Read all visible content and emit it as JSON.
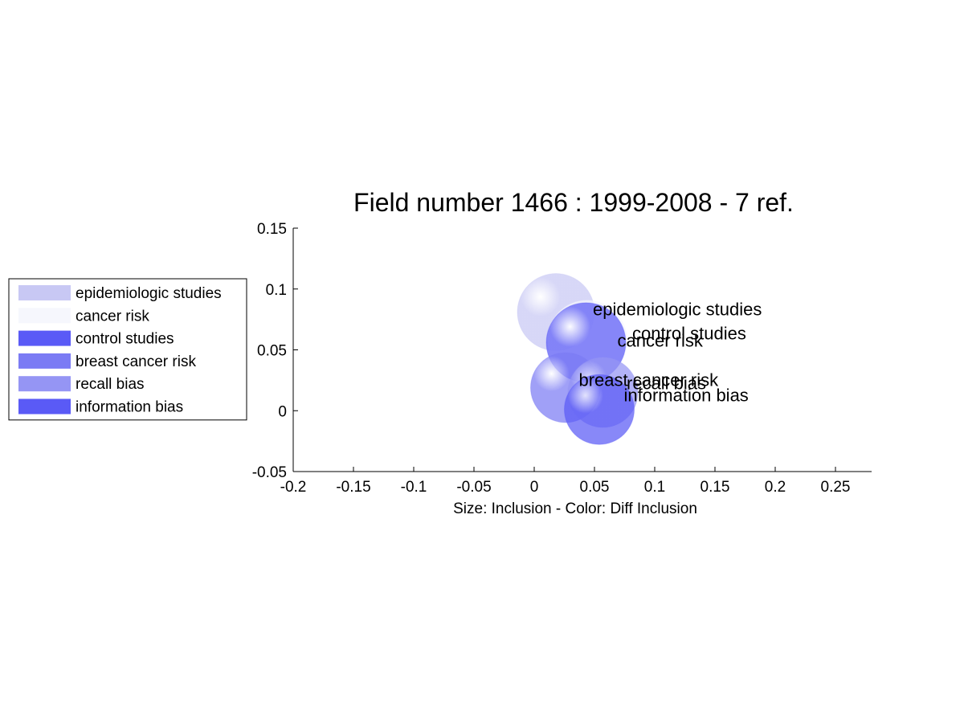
{
  "chart_data": {
    "type": "scatter",
    "title": "Field number 1466 : 1999-2008  - 7 ref.",
    "xlabel": "Size: Inclusion - Color: Diff Inclusion",
    "ylabel": "",
    "xlim": [
      -0.2,
      0.28
    ],
    "ylim": [
      -0.05,
      0.15
    ],
    "x_ticks": [
      "-0.2",
      "-0.15",
      "-0.1",
      "-0.05",
      "0",
      "0.05",
      "0.1",
      "0.15",
      "0.2",
      "0.25"
    ],
    "y_ticks": [
      "-0.05",
      "0",
      "0.05",
      "0.1",
      "0.15"
    ],
    "legend_position": "left",
    "series": [
      {
        "name": "epidemiologic studies",
        "x": 0.018,
        "y": 0.081,
        "radius": 0.032,
        "color": "#c8c8f4"
      },
      {
        "name": "cancer risk",
        "x": 0.044,
        "y": 0.058,
        "radius": 0.033,
        "color": "#f6f7fd"
      },
      {
        "name": "control studies",
        "x": 0.043,
        "y": 0.056,
        "radius": 0.033,
        "color": "#5a5af6"
      },
      {
        "name": "breast cancer risk",
        "x": 0.026,
        "y": 0.019,
        "radius": 0.029,
        "color": "#7b7bf4"
      },
      {
        "name": "recall bias",
        "x": 0.057,
        "y": 0.015,
        "radius": 0.029,
        "color": "#9595f4"
      },
      {
        "name": "information bias",
        "x": 0.054,
        "y": 0.001,
        "radius": 0.029,
        "color": "#5a5af6"
      }
    ]
  }
}
